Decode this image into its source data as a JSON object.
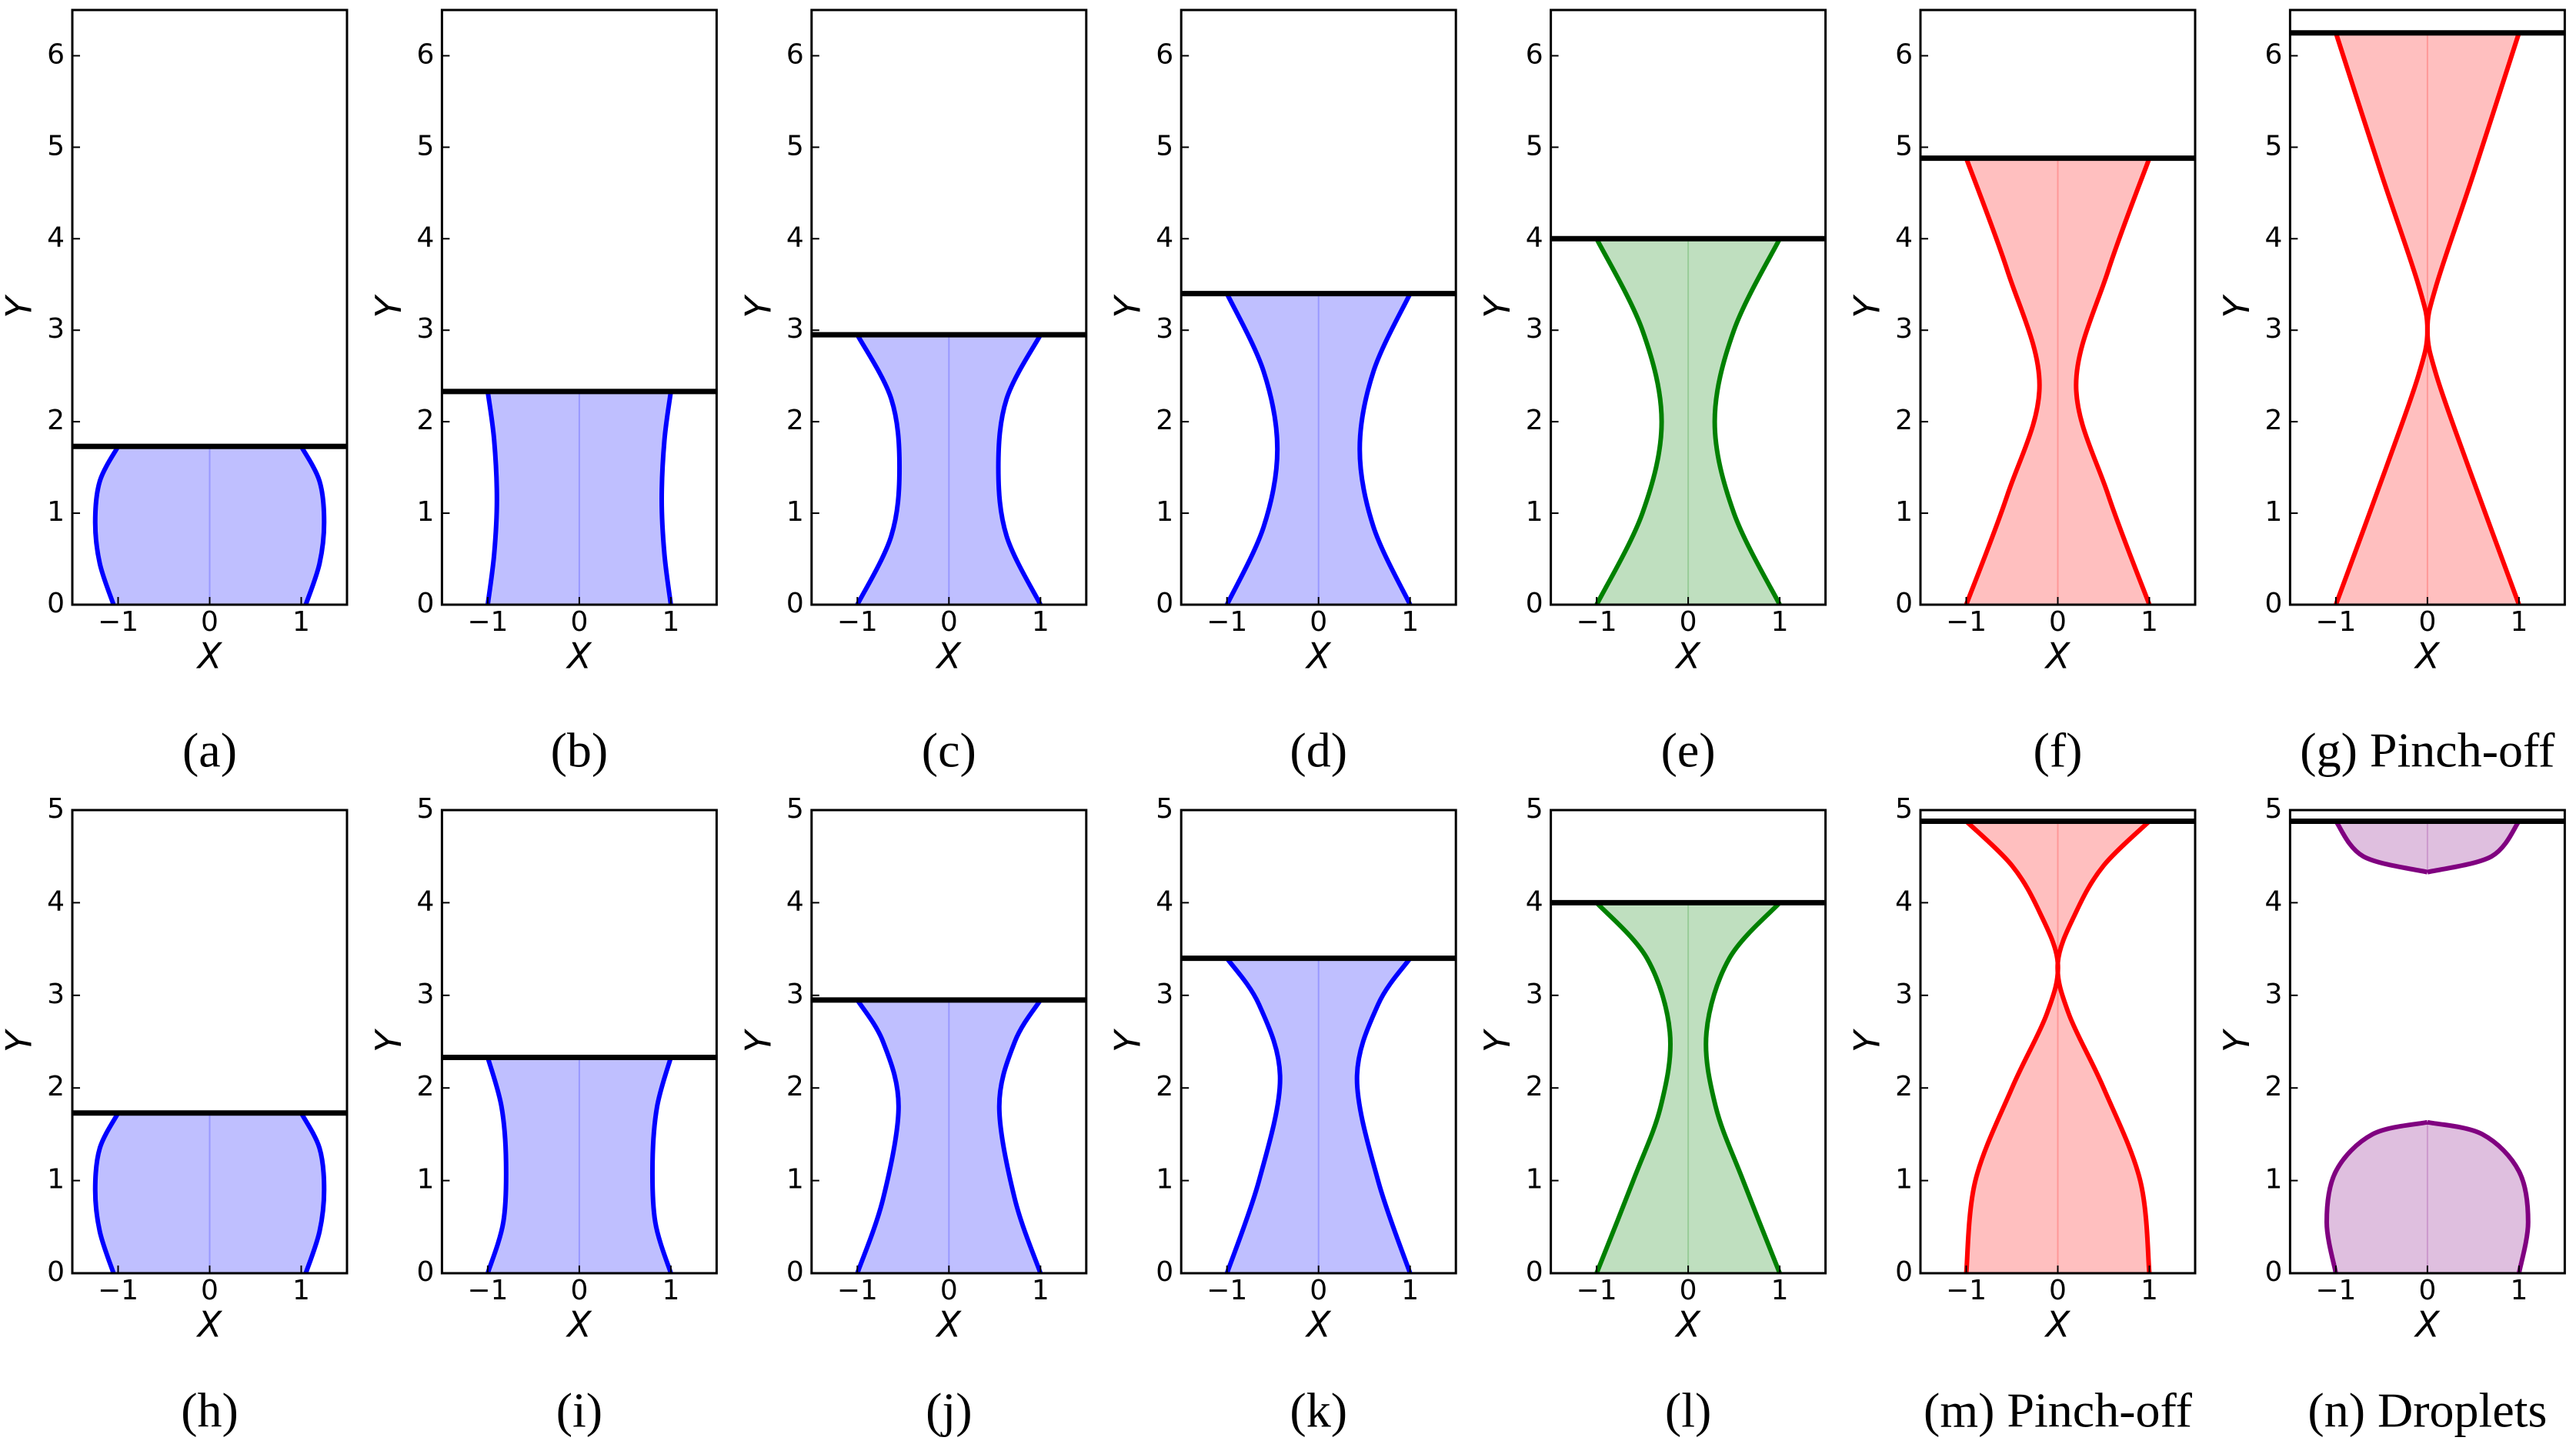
{
  "chart_data": [
    {
      "type": "profile",
      "caption": "(a)",
      "xlabel": "X",
      "ylabel": "Y",
      "xlim": [
        -1.5,
        1.5
      ],
      "ylim": [
        0,
        6.5
      ],
      "xticks": [
        {
          "value": -1,
          "label": "−1"
        },
        0,
        1
      ],
      "yticks": [
        0,
        1,
        2,
        3,
        4,
        5,
        6
      ],
      "plate": 1.73,
      "series": [
        {
          "color": "#0000ff",
          "x": [
            1.05,
            1.2,
            1.25,
            1.2,
            1.0
          ],
          "y": [
            0,
            0.45,
            0.9,
            1.35,
            1.73
          ]
        }
      ]
    },
    {
      "type": "profile",
      "caption": "(b)",
      "xlabel": "X",
      "ylabel": "Y",
      "xlim": [
        -1.5,
        1.5
      ],
      "ylim": [
        0,
        6.5
      ],
      "xticks": [
        {
          "value": -1,
          "label": "−1"
        },
        0,
        1
      ],
      "yticks": [
        0,
        1,
        2,
        3,
        4,
        5,
        6
      ],
      "plate": 2.33,
      "series": [
        {
          "color": "#0000ff",
          "x": [
            1.0,
            0.93,
            0.9,
            0.93,
            1.0
          ],
          "y": [
            0,
            0.55,
            1.15,
            1.8,
            2.33
          ]
        }
      ]
    },
    {
      "type": "profile",
      "caption": "(c)",
      "xlabel": "X",
      "ylabel": "Y",
      "xlim": [
        -1.5,
        1.5
      ],
      "ylim": [
        0,
        6.5
      ],
      "xticks": [
        {
          "value": -1,
          "label": "−1"
        },
        0,
        1
      ],
      "yticks": [
        0,
        1,
        2,
        3,
        4,
        5,
        6
      ],
      "plate": 2.95,
      "series": [
        {
          "color": "#0000ff",
          "x": [
            1.0,
            0.63,
            0.54,
            0.63,
            1.0
          ],
          "y": [
            0,
            0.75,
            1.5,
            2.25,
            2.95
          ]
        }
      ]
    },
    {
      "type": "profile",
      "caption": "(d)",
      "xlabel": "X",
      "ylabel": "Y",
      "xlim": [
        -1.5,
        1.5
      ],
      "ylim": [
        0,
        6.5
      ],
      "xticks": [
        {
          "value": -1,
          "label": "−1"
        },
        0,
        1
      ],
      "yticks": [
        0,
        1,
        2,
        3,
        4,
        5,
        6
      ],
      "plate": 3.4,
      "series": [
        {
          "color": "#0000ff",
          "x": [
            1.0,
            0.6,
            0.45,
            0.6,
            1.0
          ],
          "y": [
            0,
            0.85,
            1.7,
            2.55,
            3.4
          ]
        }
      ]
    },
    {
      "type": "profile",
      "caption": "(e)",
      "xlabel": "X",
      "ylabel": "Y",
      "xlim": [
        -1.5,
        1.5
      ],
      "ylim": [
        0,
        6.5
      ],
      "xticks": [
        {
          "value": -1,
          "label": "−1"
        },
        0,
        1
      ],
      "yticks": [
        0,
        1,
        2,
        3,
        4,
        5,
        6
      ],
      "plate": 4.0,
      "series": [
        {
          "color": "#008000",
          "x": [
            1.0,
            0.5,
            0.29,
            0.5,
            1.0
          ],
          "y": [
            0,
            1,
            2,
            3,
            4
          ]
        }
      ]
    },
    {
      "type": "profile",
      "caption": "(f)",
      "xlabel": "X",
      "ylabel": "Y",
      "xlim": [
        -1.5,
        1.5
      ],
      "ylim": [
        0,
        6.5
      ],
      "xticks": [
        {
          "value": -1,
          "label": "−1"
        },
        0,
        1
      ],
      "yticks": [
        0,
        1,
        2,
        3,
        4,
        5,
        6
      ],
      "plate": 4.88,
      "series": [
        {
          "color": "#ff0000",
          "x": [
            1.0,
            0.55,
            0.2,
            0.55,
            1.0
          ],
          "y": [
            0,
            1.2,
            2.4,
            3.65,
            4.88
          ]
        }
      ]
    },
    {
      "type": "profile",
      "caption": "(g) Pinch-off",
      "xlabel": "X",
      "ylabel": "Y",
      "xlim": [
        -1.5,
        1.5
      ],
      "ylim": [
        0,
        6.5
      ],
      "xticks": [
        {
          "value": -1,
          "label": "−1"
        },
        0,
        1
      ],
      "yticks": [
        0,
        1,
        2,
        3,
        4,
        5,
        6
      ],
      "plate": 6.25,
      "series": [
        {
          "color": "#ff0000",
          "x": [
            1.0,
            0.45,
            0.1,
            0,
            0.1,
            0.5,
            1.0
          ],
          "y": [
            0,
            1.5,
            2.5,
            3.0,
            3.5,
            4.7,
            6.25
          ]
        }
      ]
    },
    {
      "type": "profile",
      "caption": "(h)",
      "xlabel": "X",
      "ylabel": "Y",
      "xlim": [
        -1.5,
        1.5
      ],
      "ylim": [
        0,
        5
      ],
      "xticks": [
        {
          "value": -1,
          "label": "−1"
        },
        0,
        1
      ],
      "yticks": [
        0,
        1,
        2,
        3,
        4,
        5
      ],
      "plate": 1.73,
      "series": [
        {
          "color": "#0000ff",
          "x": [
            1.05,
            1.2,
            1.25,
            1.2,
            1.0
          ],
          "y": [
            0,
            0.45,
            0.9,
            1.35,
            1.73
          ]
        }
      ]
    },
    {
      "type": "profile",
      "caption": "(i)",
      "xlabel": "X",
      "ylabel": "Y",
      "xlim": [
        -1.5,
        1.5
      ],
      "ylim": [
        0,
        5
      ],
      "xticks": [
        {
          "value": -1,
          "label": "−1"
        },
        0,
        1
      ],
      "yticks": [
        0,
        1,
        2,
        3,
        4,
        5
      ],
      "plate": 2.33,
      "series": [
        {
          "color": "#0000ff",
          "x": [
            1.0,
            0.83,
            0.8,
            0.85,
            1.0
          ],
          "y": [
            0,
            0.55,
            1.2,
            1.8,
            2.33
          ]
        }
      ]
    },
    {
      "type": "profile",
      "caption": "(j)",
      "xlabel": "X",
      "ylabel": "Y",
      "xlim": [
        -1.5,
        1.5
      ],
      "ylim": [
        0,
        5
      ],
      "xticks": [
        {
          "value": -1,
          "label": "−1"
        },
        0,
        1
      ],
      "yticks": [
        0,
        1,
        2,
        3,
        4,
        5
      ],
      "plate": 2.95,
      "series": [
        {
          "color": "#0000ff",
          "x": [
            1.0,
            0.72,
            0.55,
            0.72,
            1.0
          ],
          "y": [
            0,
            0.8,
            1.8,
            2.5,
            2.95
          ]
        }
      ]
    },
    {
      "type": "profile",
      "caption": "(k)",
      "xlabel": "X",
      "ylabel": "Y",
      "xlim": [
        -1.5,
        1.5
      ],
      "ylim": [
        0,
        5
      ],
      "xticks": [
        {
          "value": -1,
          "label": "−1"
        },
        0,
        1
      ],
      "yticks": [
        0,
        1,
        2,
        3,
        4,
        5
      ],
      "plate": 3.4,
      "series": [
        {
          "color": "#0000ff",
          "x": [
            1.0,
            0.65,
            0.42,
            0.65,
            1.0
          ],
          "y": [
            0,
            1.0,
            2.1,
            2.9,
            3.4
          ]
        }
      ]
    },
    {
      "type": "profile",
      "caption": "(l)",
      "xlabel": "X",
      "ylabel": "Y",
      "xlim": [
        -1.5,
        1.5
      ],
      "ylim": [
        0,
        5
      ],
      "xticks": [
        {
          "value": -1,
          "label": "−1"
        },
        0,
        1
      ],
      "yticks": [
        0,
        1,
        2,
        3,
        4,
        5
      ],
      "plate": 4.0,
      "series": [
        {
          "color": "#008000",
          "x": [
            1.0,
            0.6,
            0.3,
            0.2,
            0.45,
            1.0
          ],
          "y": [
            0,
            1.0,
            1.8,
            2.6,
            3.4,
            4.0
          ]
        }
      ]
    },
    {
      "type": "profile",
      "caption": "(m) Pinch-off",
      "xlabel": "X",
      "ylabel": "Y",
      "xlim": [
        -1.5,
        1.5
      ],
      "ylim": [
        0,
        5
      ],
      "xticks": [
        {
          "value": -1,
          "label": "−1"
        },
        0,
        1
      ],
      "yticks": [
        0,
        1,
        2,
        3,
        4,
        5
      ],
      "plate": 4.88,
      "series": [
        {
          "color": "#ff0000",
          "x": [
            1.0,
            0.9,
            0.5,
            0.12,
            0,
            0.2,
            0.5,
            1.0
          ],
          "y": [
            0,
            1.0,
            2.0,
            2.8,
            3.35,
            3.9,
            4.4,
            4.88
          ]
        }
      ]
    },
    {
      "type": "profile",
      "caption": "(n) Droplets",
      "xlabel": "X",
      "ylabel": "Y",
      "xlim": [
        -1.5,
        1.5
      ],
      "ylim": [
        0,
        5
      ],
      "xticks": [
        {
          "value": -1,
          "label": "−1"
        },
        0,
        1
      ],
      "yticks": [
        0,
        1,
        2,
        3,
        4,
        5
      ],
      "plate": 4.88,
      "series": [
        {
          "color": "#800080",
          "x": [
            1.0,
            1.1,
            1.0,
            0.6,
            0
          ],
          "y": [
            0,
            0.55,
            1.1,
            1.5,
            1.63
          ]
        },
        {
          "color": "#800080",
          "x": [
            1.0,
            0.7,
            0
          ],
          "y": [
            4.88,
            4.5,
            4.33
          ]
        }
      ]
    }
  ]
}
